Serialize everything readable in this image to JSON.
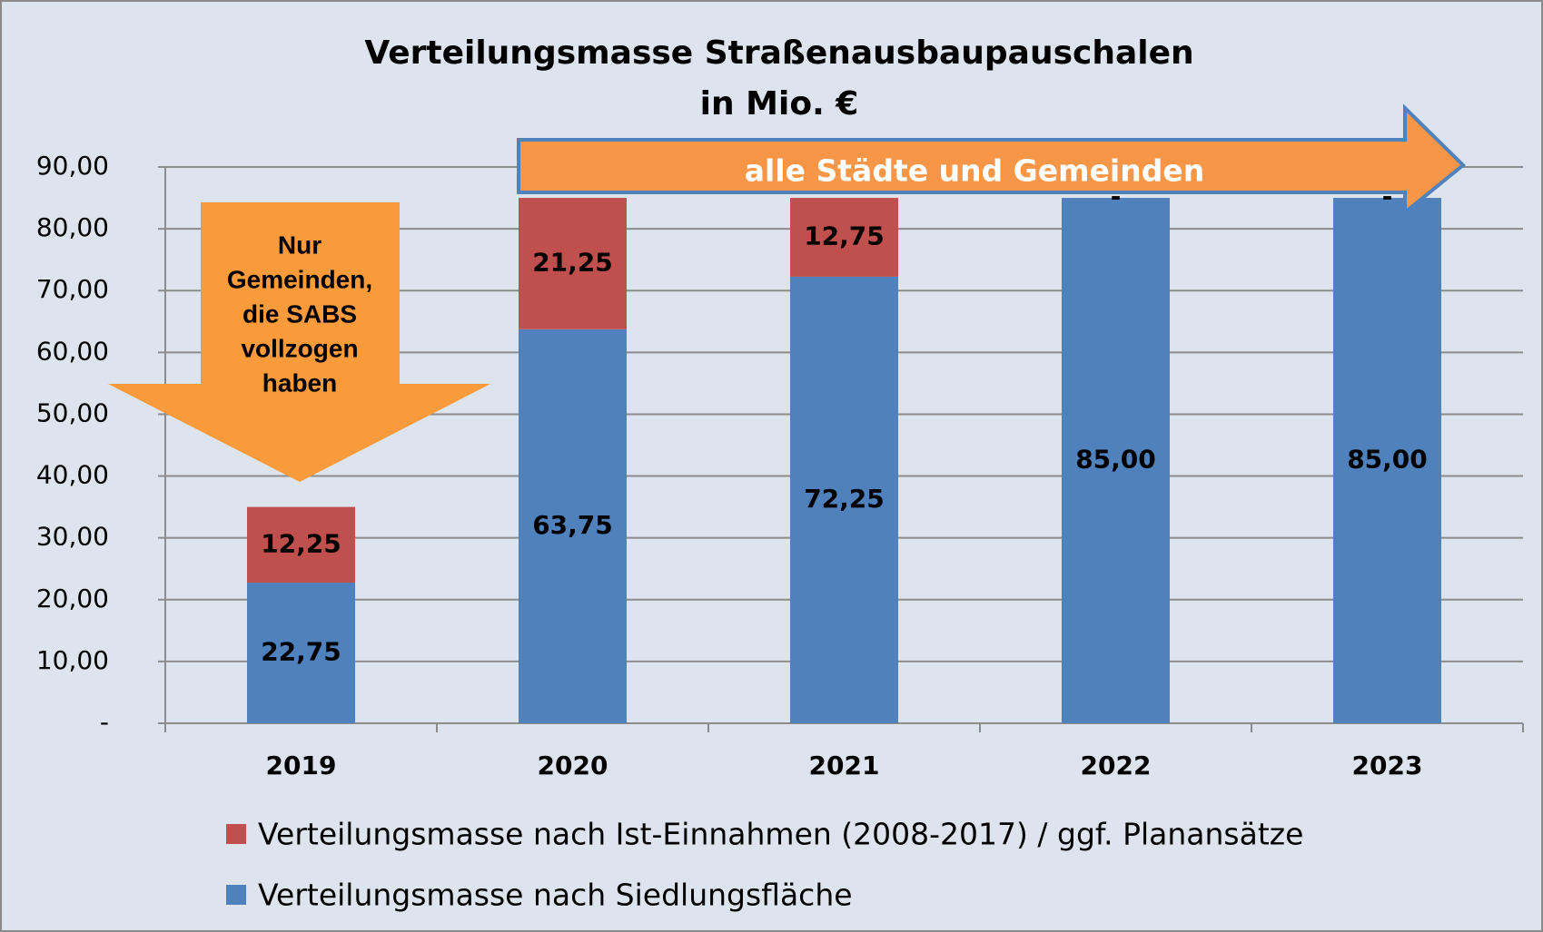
{
  "chart_data": {
    "type": "stacked_bar",
    "title": "Verteilungsmasse Straßenausbaupauschalen",
    "subtitle": "in Mio. €",
    "categories": [
      "2019",
      "2020",
      "2021",
      "2022",
      "2023"
    ],
    "series": [
      {
        "name": "Verteilungsmasse nach Siedlungsfläche",
        "color": "#4f81bd",
        "values": [
          22.75,
          63.75,
          72.25,
          85,
          85
        ],
        "value_labels": [
          "22,75",
          "63,75",
          "72,25",
          "85,00",
          "85,00"
        ]
      },
      {
        "name": "Verteilungsmasse nach Ist-Einnahmen (2008-2017) / ggf. Planansätze",
        "color": "#c0504d",
        "values": [
          12.25,
          21.25,
          12.75,
          0,
          0
        ],
        "value_labels": [
          "12,25",
          "21,25",
          "12,75",
          "-",
          "-"
        ]
      }
    ],
    "ylim": [
      0,
      90
    ],
    "yticks": [
      {
        "value": 0,
        "label": "-"
      },
      {
        "value": 10,
        "label": "10,00"
      },
      {
        "value": 20,
        "label": "20,00"
      },
      {
        "value": 30,
        "label": "30,00"
      },
      {
        "value": 40,
        "label": "40,00"
      },
      {
        "value": 50,
        "label": "50,00"
      },
      {
        "value": 60,
        "label": "60,00"
      },
      {
        "value": 70,
        "label": "70,00"
      },
      {
        "value": 80,
        "label": "80,00"
      },
      {
        "value": 90,
        "label": "90,00"
      }
    ],
    "grid": true,
    "legend": "bottom",
    "annotations": [
      {
        "lines": [
          "Nur",
          "Gemeinden,",
          "die SABS",
          "vollzogen",
          "haben"
        ]
      },
      {
        "text": "alle Städte und Gemeinden"
      }
    ]
  }
}
